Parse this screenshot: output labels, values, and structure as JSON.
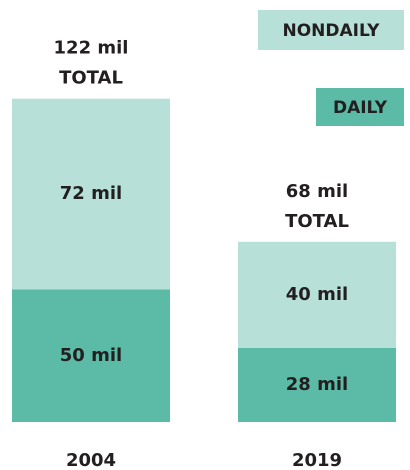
{
  "chart_data": {
    "type": "stacked_bar",
    "categories": [
      "2004",
      "2019"
    ],
    "series": [
      {
        "name": "DAILY",
        "color": "#5bbba7",
        "values": [
          50,
          28
        ],
        "value_labels": [
          "50 mil",
          "28 mil"
        ]
      },
      {
        "name": "NONDAILY",
        "color": "#b7e0d9",
        "values": [
          72,
          40
        ],
        "value_labels": [
          "72 mil",
          "40 mil"
        ]
      }
    ],
    "totals": [
      122,
      68
    ],
    "total_labels": [
      "122  mil",
      "68 mil"
    ],
    "total_caption": "TOTAL"
  }
}
